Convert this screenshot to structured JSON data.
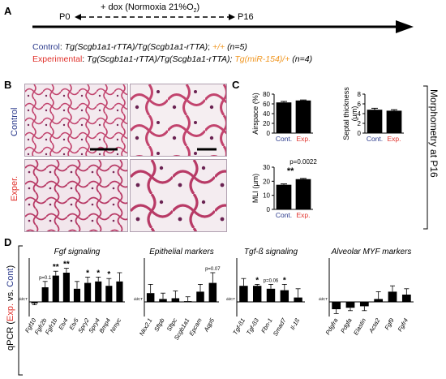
{
  "panels": {
    "a": "A",
    "b": "B",
    "c": "C",
    "d": "D"
  },
  "timeline": {
    "start": "P0",
    "end": "P16",
    "treatment_text": "+ dox (Normoxia 21%O",
    "treatment_sub": "2",
    "treatment_close": ")"
  },
  "groups": {
    "control": {
      "label": "Control",
      "sep": ": ",
      "genotype": "Tg(Scgb1a1-rTTA)/Tg(Scgb1a1-rTTA)",
      "extra": "+/+",
      "n": "(n=5)"
    },
    "experimental": {
      "label": "Experimental",
      "sep": ": ",
      "genotype": "Tg(Scgb1a1-rTTA)/Tg(Scgb1a1-rTTA);",
      "extra": "Tg(miR-154)/+",
      "n": "(n=4)"
    }
  },
  "histology": {
    "row_control": "Control",
    "row_exper": "Exper."
  },
  "morphometry_label": "Morphometry at P16",
  "colors": {
    "blue": "#2b3a8c",
    "red": "#e0302a",
    "orange": "#f0951e",
    "tissue": "#c2446e"
  },
  "chart_data": [
    {
      "type": "bar",
      "ylabel": "Airspace (%)",
      "categories": [
        "Cont.",
        "Exp."
      ],
      "values": [
        63,
        67
      ],
      "errors": [
        2,
        1
      ],
      "ylim": [
        0,
        80
      ],
      "ticks": [
        "0",
        "20",
        "40",
        "60",
        "80"
      ],
      "tickvals": [
        0,
        20,
        40,
        60,
        80
      ]
    },
    {
      "type": "bar",
      "ylabel": "Septal thickness (µm)",
      "ylabel_line1": "Septal thickness",
      "ylabel_line2": "(µm)",
      "categories": [
        "Cont.",
        "Exp."
      ],
      "values": [
        4.8,
        4.6
      ],
      "errors": [
        0.3,
        0.2
      ],
      "ylim": [
        0,
        8
      ],
      "ticks": [
        "0",
        "2",
        "4",
        "6",
        "8"
      ],
      "tickvals": [
        0,
        2,
        4,
        6,
        8
      ]
    },
    {
      "type": "bar",
      "ylabel": "MLI (µm)",
      "categories": [
        "Cont.",
        "Exp."
      ],
      "values": [
        17.5,
        21.5
      ],
      "errors": [
        0.6,
        0.5
      ],
      "ylim": [
        0,
        30
      ],
      "ticks": [
        "0",
        "10",
        "20",
        "30"
      ],
      "tickvals": [
        0,
        10,
        20,
        30
      ],
      "pvalue": "p=0.0022",
      "sig": "**"
    },
    {
      "type": "bar",
      "title": "Fgf signaling",
      "ylabel": "qPCR (Exp. vs. Cont)",
      "ylabel_prefix": "qPCR (",
      "ylabel_exp": "Exp.",
      "ylabel_mid": " vs. ",
      "ylabel_cont": "Cont",
      "ylabel_suffix": ")",
      "axis_unit": "ddCT",
      "categories": [
        "Fgf10",
        "Fgfr2b",
        "Fgfr1b",
        "Etv4",
        "Etv5",
        "Spry2",
        "Spry4",
        "Bmp4",
        "Nmyc"
      ],
      "values": [
        -0.1,
        1.0,
        1.8,
        2.0,
        0.9,
        1.3,
        1.4,
        1.1,
        1.4
      ],
      "errors": [
        0.1,
        0.4,
        0.3,
        0.3,
        0.5,
        0.4,
        0.3,
        0.5,
        0.6
      ],
      "sig_labels": [
        "",
        "",
        "**",
        "**",
        "",
        "*",
        "*",
        "*",
        ""
      ],
      "annotations": [
        {
          "index": 1,
          "text": "p=0.1"
        }
      ],
      "ylim": [
        -1,
        3
      ]
    },
    {
      "type": "bar",
      "title": "Epithelial markers",
      "axis_unit": "ddCT",
      "categories": [
        "Nkx2.1",
        "Sftpb",
        "Sftpc",
        "Scgb1a1",
        "Epcam",
        "Aqp5"
      ],
      "values": [
        0.6,
        0.2,
        0.25,
        0.05,
        0.7,
        1.3
      ],
      "errors": [
        0.6,
        0.4,
        0.5,
        0.3,
        0.5,
        0.7
      ],
      "sig_labels": [
        "",
        "",
        "",
        "",
        "",
        ""
      ],
      "annotations": [
        {
          "index": 5,
          "text": "p=0.07"
        }
      ],
      "ylim": [
        -1,
        3
      ]
    },
    {
      "type": "bar",
      "title": "Tgf-ß signaling",
      "axis_unit": "ddCT",
      "categories": [
        "Tgf-ß1",
        "Tgf-ß3",
        "Fbn-1",
        "Smad7",
        "Il-1ß"
      ],
      "values": [
        1.1,
        1.1,
        0.9,
        0.8,
        0.3
      ],
      "errors": [
        0.5,
        0.1,
        0.3,
        0.4,
        0.6
      ],
      "sig_labels": [
        "",
        "*",
        "",
        "*",
        ""
      ],
      "annotations": [
        {
          "index": 2,
          "text": "p=0.06"
        }
      ],
      "ylim": [
        -1,
        3
      ]
    },
    {
      "type": "bar",
      "title": "Alveolar MYF markers",
      "axis_unit": "ddCT",
      "categories": [
        "Pdgfra",
        "Pdgfa",
        "Elastin",
        "Acta2",
        "Fgf9",
        "Fgfr4"
      ],
      "values": [
        -0.5,
        -0.4,
        -0.3,
        0.2,
        0.7,
        0.5
      ],
      "errors": [
        0.3,
        0.2,
        0.3,
        0.5,
        0.4,
        0.4
      ],
      "sig_labels": [
        "",
        "",
        "",
        "",
        "",
        ""
      ],
      "annotations": [],
      "ylim": [
        -1,
        3
      ]
    }
  ]
}
